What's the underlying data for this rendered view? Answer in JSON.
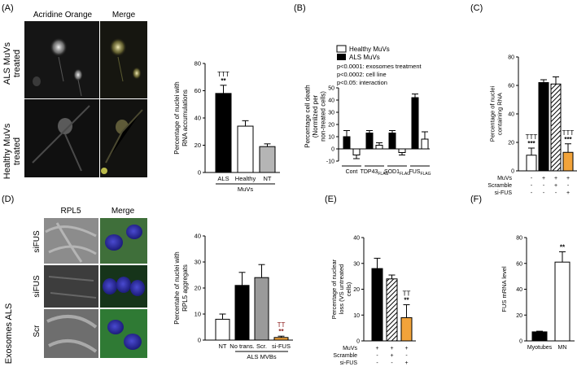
{
  "panels": {
    "A": {
      "letter": "(A)",
      "col_headers": [
        "Acridine Orange",
        "Merge"
      ],
      "row_labels": [
        [
          "ALS MuVs",
          "treated"
        ],
        [
          "Healthy MuVs",
          "treated"
        ]
      ]
    },
    "B": {
      "letter": "(B)",
      "legend": [
        "Healthy MuVs",
        "ALS MuVs"
      ],
      "stats": [
        "p<0.0001: exosomes treatment",
        "p<0.0002: cell line",
        "p<0.05: interaction"
      ]
    },
    "C": {
      "letter": "(C)",
      "row_labels": [
        "MuVs",
        "Scramble",
        "si-FUS"
      ]
    },
    "D": {
      "letter": "(D)",
      "col_headers": [
        "RPL5",
        "Merge"
      ],
      "row_labels": [
        "siFUS",
        "siFUS",
        "Scr"
      ],
      "side_label": "Exosomes ALS"
    },
    "E": {
      "letter": "(E)",
      "row_labels": [
        "MuVs",
        "Scramble",
        "si-FUS"
      ]
    },
    "F": {
      "letter": "(F)"
    }
  },
  "chart_data": [
    {
      "panel": "A",
      "type": "bar",
      "categories": [
        "ALS",
        "Healthy",
        "NT"
      ],
      "values": [
        58,
        34,
        19
      ],
      "errors": [
        6,
        4,
        2
      ],
      "colors": [
        "#000000",
        "#ffffff",
        "#b5b5b5"
      ],
      "ylabel": "Percentage of nuclei with RNA accumulations",
      "ylim": [
        0,
        80
      ],
      "yticks": [
        0,
        20,
        40,
        60,
        80
      ],
      "group_label": "MuVs",
      "annotations": [
        {
          "category": "ALS",
          "lines": [
            "TTT",
            "**"
          ]
        }
      ]
    },
    {
      "panel": "B",
      "type": "bar",
      "categories": [
        "Cont",
        "TDP43",
        "SOD1",
        "FUS"
      ],
      "category_subscripts": [
        "",
        "FLAG",
        "FLAG",
        "FLAG"
      ],
      "series": [
        {
          "name": "Healthy MuVs",
          "values": [
            -5,
            3,
            -3,
            8
          ],
          "errors": [
            3,
            2,
            2,
            6
          ],
          "color": "#ffffff"
        },
        {
          "name": "ALS MuVs",
          "values": [
            10,
            13,
            13,
            42
          ],
          "errors": [
            5,
            2,
            2,
            3
          ],
          "color": "#000000"
        }
      ],
      "ylabel": "Percentage cell death (Normlized per non-treated cells)",
      "ylim": [
        -10,
        50
      ],
      "yticks": [
        -10,
        0,
        10,
        20,
        30,
        40,
        50
      ]
    },
    {
      "panel": "C",
      "type": "bar",
      "conditions": [
        "MuVs",
        "Scramble",
        "si-FUS"
      ],
      "values": [
        11,
        62,
        61,
        13
      ],
      "errors": [
        5,
        2,
        5,
        6
      ],
      "fills": [
        "#ffffff",
        "#000000",
        "hatch",
        "#f2a33a"
      ],
      "matrix": [
        [
          "-",
          "+",
          "+",
          "+"
        ],
        [
          "-",
          "-",
          "+",
          "-"
        ],
        [
          "-",
          "-",
          "-",
          "+"
        ]
      ],
      "ylabel": "Percentage of nuclei containing RNA",
      "ylim": [
        0,
        80
      ],
      "yticks": [
        0,
        20,
        40,
        60,
        80
      ],
      "annotations": [
        {
          "bar": 0,
          "lines": [
            "TTT",
            "***"
          ]
        },
        {
          "bar": 3,
          "lines": [
            "TTT",
            "***"
          ]
        }
      ]
    },
    {
      "panel": "D",
      "type": "bar",
      "categories": [
        "NT",
        "No trans.",
        "Scr.",
        "si-FUS"
      ],
      "values": [
        8,
        21,
        24,
        1
      ],
      "errors": [
        2,
        5,
        5,
        0.5
      ],
      "colors": [
        "#ffffff",
        "#000000",
        "#9a9a9a",
        "#f2a33a"
      ],
      "ylabel": "Percentahe of nuclei with RPL5 aggregats",
      "ylim": [
        0,
        40
      ],
      "yticks": [
        0,
        10,
        20,
        30,
        40
      ],
      "group_label": "ALS MVBs",
      "annotations": [
        {
          "category": "si-FUS",
          "lines": [
            "TT",
            "**"
          ]
        }
      ]
    },
    {
      "panel": "E",
      "type": "bar",
      "conditions": [
        "MuVs",
        "Scramble",
        "si-FUS"
      ],
      "values": [
        28,
        24,
        9
      ],
      "errors": [
        4,
        1.5,
        5
      ],
      "fills": [
        "#000000",
        "hatch",
        "#f2a33a"
      ],
      "matrix": [
        [
          "+",
          "+",
          "+"
        ],
        [
          "-",
          "+",
          "-"
        ],
        [
          "-",
          "-",
          "+"
        ]
      ],
      "ylabel": "Percentage of nuclear loss (VS untreated cells)",
      "ylim": [
        0,
        40
      ],
      "yticks": [
        0,
        10,
        20,
        30,
        40
      ],
      "annotations": [
        {
          "bar": 2,
          "lines": [
            "TT",
            "**"
          ]
        }
      ]
    },
    {
      "panel": "F",
      "type": "bar",
      "categories": [
        "Myotubes",
        "MN"
      ],
      "values": [
        7,
        61
      ],
      "errors": [
        0.5,
        8
      ],
      "colors": [
        "#000000",
        "#ffffff"
      ],
      "ylabel": "FUS mRNA level",
      "ylim": [
        0,
        80
      ],
      "yticks": [
        0,
        20,
        40,
        60,
        80
      ],
      "annotations": [
        {
          "category": "MN",
          "lines": [
            "**"
          ]
        }
      ]
    }
  ]
}
